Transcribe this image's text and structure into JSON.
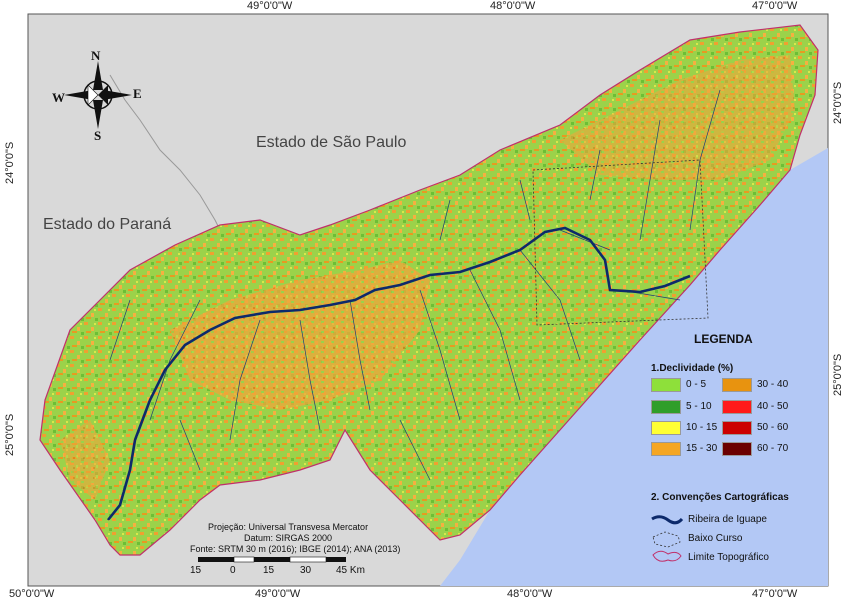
{
  "coords": {
    "top": [
      "49°0'0\"W",
      "48°0'0\"W",
      "47°0'0\"W"
    ],
    "bottom": [
      "50°0'0\"W",
      "49°0'0\"W",
      "48°0'0\"W",
      "47°0'0\"W"
    ],
    "left": [
      "24°0'0\"S",
      "25°0'0\"S"
    ],
    "right": [
      "24°0'0\"S",
      "25°0'0\"S"
    ]
  },
  "states": {
    "sp": "Estado de São Paulo",
    "pr": "Estado do Paraná"
  },
  "compass": {
    "n": "N",
    "s": "S",
    "e": "E",
    "w": "W"
  },
  "legend": {
    "title": "LEGENDA",
    "section1": "1.Declividade (%)",
    "classes": [
      {
        "label": "0 - 5",
        "color": "#8ee03a"
      },
      {
        "label": "5 - 10",
        "color": "#2f9e2a"
      },
      {
        "label": "10 - 15",
        "color": "#ffff33"
      },
      {
        "label": "15 - 30",
        "color": "#f5a623"
      },
      {
        "label": "30 - 40",
        "color": "#e8930f"
      },
      {
        "label": "40 - 50",
        "color": "#ff1a1a"
      },
      {
        "label": "50 - 60",
        "color": "#cc0000"
      },
      {
        "label": "60 - 70",
        "color": "#6b0000"
      }
    ],
    "section2": "2. Convenções Cartográficas",
    "conventions": {
      "river": "Ribeira de Iguape",
      "lower": "Baixo Curso",
      "limit": "Limite Topográfico"
    }
  },
  "info": {
    "projection": "Projeção: Universal Transvesa Mercator",
    "datum": "Datum: SIRGAS 2000",
    "source": "Fonte: SRTM 30 m (2016); IBGE (2014); ANA (2013)"
  },
  "scale": {
    "labels": [
      "15",
      "0",
      "15",
      "30",
      "45 Km"
    ]
  },
  "colors": {
    "ocean": "#b3c8f5",
    "land_outside": "#d9d9d9",
    "river": "#0d2a6b",
    "limit": "#c0306a"
  }
}
